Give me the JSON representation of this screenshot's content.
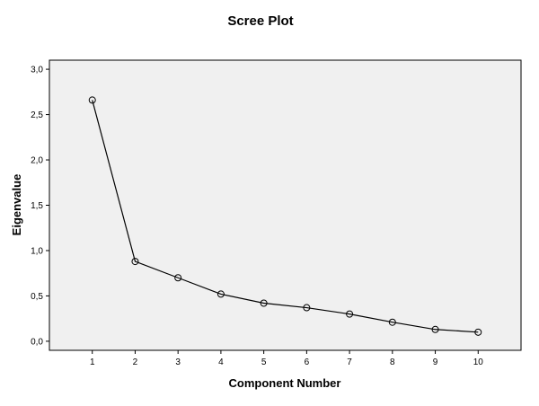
{
  "chart_data": {
    "type": "line",
    "title": "Scree Plot",
    "xlabel": "Component Number",
    "ylabel": "Eigenvalue",
    "x": [
      1,
      2,
      3,
      4,
      5,
      6,
      7,
      8,
      9,
      10
    ],
    "x_tick_labels": [
      "1",
      "2",
      "3",
      "4",
      "5",
      "6",
      "7",
      "8",
      "9",
      "10"
    ],
    "series": [
      {
        "values": [
          2.66,
          0.88,
          0.7,
          0.52,
          0.42,
          0.37,
          0.3,
          0.21,
          0.13,
          0.1
        ]
      }
    ],
    "xlim": [
      0,
      11
    ],
    "ylim": [
      -0.1,
      3.1
    ],
    "y_ticks": [
      0.0,
      0.5,
      1.0,
      1.5,
      2.0,
      2.5,
      3.0
    ],
    "y_tick_labels": [
      "0,0",
      "0,5",
      "1,0",
      "1,5",
      "2,0",
      "2,5",
      "3,0"
    ],
    "grid": false,
    "legend": "none",
    "marker": "open-circle",
    "colors": {
      "plot_background": "#f0f0f0",
      "line": "#000000",
      "marker_stroke": "#000000",
      "frame": "#000000"
    }
  }
}
